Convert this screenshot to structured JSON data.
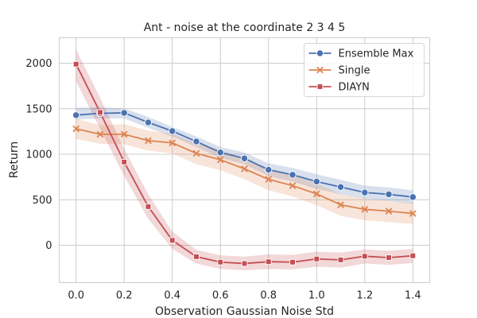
{
  "chart_data": {
    "type": "line",
    "title": "Ant - noise at the coordinate 2 3 4 5",
    "xlabel": "Observation Gaussian Noise Std",
    "ylabel": "Return",
    "xlim": [
      -0.07,
      1.47
    ],
    "ylim": [
      -410,
      2280
    ],
    "x_ticks": [
      0.0,
      0.2,
      0.4,
      0.6,
      0.8,
      1.0,
      1.2,
      1.4
    ],
    "x_tick_labels": [
      "0.0",
      "0.2",
      "0.4",
      "0.6",
      "0.8",
      "1.0",
      "1.2",
      "1.4"
    ],
    "y_ticks": [
      0,
      500,
      1000,
      1500,
      2000
    ],
    "y_tick_labels": [
      "0",
      "500",
      "1000",
      "1500",
      "2000"
    ],
    "grid": true,
    "legend_position": "top-right",
    "x": [
      0.0,
      0.1,
      0.2,
      0.3,
      0.4,
      0.5,
      0.6,
      0.7,
      0.8,
      0.9,
      1.0,
      1.1,
      1.2,
      1.3,
      1.4
    ],
    "series": [
      {
        "name": "Ensemble Max",
        "color": "#4c72b0",
        "marker": "circle",
        "values": [
          1430,
          1450,
          1455,
          1350,
          1255,
          1140,
          1020,
          955,
          830,
          775,
          700,
          640,
          580,
          560,
          530
        ],
        "lower": [
          1380,
          1395,
          1395,
          1290,
          1195,
          1080,
          960,
          890,
          760,
          700,
          620,
          560,
          510,
          490,
          455
        ],
        "upper": [
          1510,
          1515,
          1505,
          1410,
          1300,
          1195,
          1080,
          1020,
          900,
          850,
          780,
          720,
          655,
          635,
          605
        ]
      },
      {
        "name": "Single",
        "color": "#dd8452",
        "marker": "x",
        "values": [
          1280,
          1220,
          1220,
          1150,
          1125,
          1010,
          940,
          840,
          725,
          655,
          565,
          445,
          395,
          375,
          350
        ],
        "lower": [
          1170,
          1115,
          1110,
          1040,
          1010,
          890,
          825,
          725,
          605,
          535,
          440,
          325,
          275,
          255,
          235
        ],
        "upper": [
          1390,
          1320,
          1330,
          1260,
          1225,
          1120,
          1050,
          955,
          845,
          775,
          680,
          560,
          510,
          490,
          465
        ]
      },
      {
        "name": "DIAYN",
        "color": "#c44e52",
        "marker": "square",
        "values": [
          1990,
          1460,
          915,
          425,
          55,
          -125,
          -185,
          -200,
          -180,
          -185,
          -150,
          -160,
          -120,
          -135,
          -115
        ],
        "lower": [
          1800,
          1280,
          760,
          290,
          -40,
          -200,
          -260,
          -275,
          -260,
          -265,
          -235,
          -245,
          -200,
          -215,
          -195
        ],
        "upper": [
          2150,
          1620,
          1060,
          560,
          150,
          -50,
          -110,
          -125,
          -100,
          -105,
          -70,
          -80,
          -45,
          -60,
          -40
        ]
      }
    ]
  }
}
